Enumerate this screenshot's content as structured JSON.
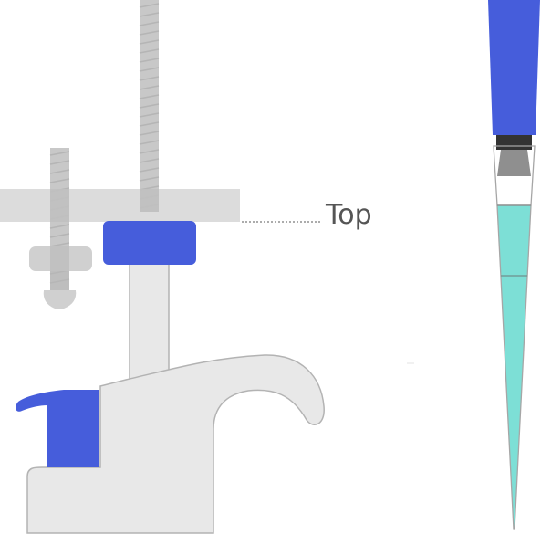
{
  "labels": {
    "top": "Top"
  },
  "colors": {
    "accent_blue": "#465ddb",
    "liquid": "#7ddfd6",
    "plate_gray": "#d6d6d6",
    "rod_gray": "#c8c8c8",
    "body_fill": "#e8e8e8",
    "body_stroke": "#b3b3b3",
    "collar_dark": "#333333",
    "cone_gray": "#8f8f8f",
    "leader_line": "#7a7a7a"
  },
  "icons": {
    "left_assembly": "pipette-holder-icon",
    "right_assembly": "pipette-tip-icon"
  }
}
